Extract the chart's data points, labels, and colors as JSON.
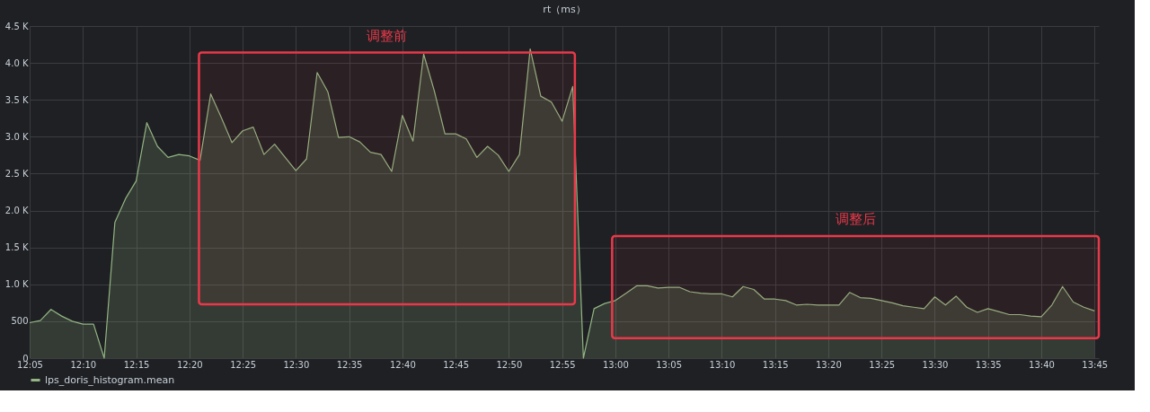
{
  "chart_data": {
    "type": "area",
    "title": "rt（ms）",
    "x": [
      12.0833,
      12.1,
      12.1167,
      12.1333,
      12.15,
      12.1667,
      12.1833,
      12.2,
      12.2167,
      12.2333,
      12.25,
      12.2667,
      12.2833,
      12.3,
      12.3167,
      12.3333,
      12.35,
      12.3667,
      12.3833,
      12.4,
      12.4167,
      12.4333,
      12.45,
      12.4667,
      12.4833,
      12.5,
      12.5167,
      12.5333,
      12.55,
      12.5667,
      12.5833,
      12.6,
      12.6167,
      12.6333,
      12.65,
      12.6667,
      12.6833,
      12.7,
      12.7167,
      12.7333,
      12.75,
      12.7667,
      12.7833,
      12.8,
      12.8167,
      12.8333,
      12.85,
      12.8667,
      12.8833,
      12.9,
      12.9167,
      12.9333,
      12.95,
      12.9667,
      12.9833,
      13,
      13.0167,
      13.0333,
      13.05,
      13.0667,
      13.0833,
      13.1,
      13.1167,
      13.1333,
      13.15,
      13.1667,
      13.1833,
      13.2,
      13.2167,
      13.2333,
      13.25,
      13.2667,
      13.2833,
      13.3,
      13.3167,
      13.3333,
      13.35,
      13.3667,
      13.3833,
      13.4,
      13.4167,
      13.4333,
      13.45,
      13.4667,
      13.4833,
      13.5,
      13.5167,
      13.5333,
      13.55,
      13.5667,
      13.5833,
      13.6,
      13.6167,
      13.6333,
      13.65,
      13.6667,
      13.6833,
      13.7,
      13.7167,
      13.7333,
      13.75
    ],
    "series": [
      {
        "name": "lps_doris_histogram.mean",
        "color": "#93b583",
        "values": [
          480,
          510,
          660,
          570,
          500,
          460,
          460,
          0,
          1840,
          2160,
          2400,
          3190,
          2870,
          2720,
          2760,
          2740,
          2680,
          3580,
          3260,
          2920,
          3080,
          3130,
          2760,
          2900,
          2720,
          2540,
          2700,
          3870,
          3610,
          2990,
          3000,
          2930,
          2790,
          2760,
          2530,
          3290,
          2940,
          4120,
          3620,
          3040,
          3040,
          2970,
          2720,
          2870,
          2750,
          2530,
          2760,
          4190,
          3550,
          3470,
          3210,
          3680,
          0,
          670,
          740,
          780,
          880,
          980,
          980,
          950,
          960,
          960,
          900,
          880,
          870,
          870,
          830,
          970,
          930,
          800,
          800,
          780,
          720,
          730,
          720,
          720,
          720,
          890,
          820,
          810,
          780,
          750,
          710,
          690,
          670,
          830,
          720,
          840,
          690,
          620,
          670,
          630,
          590,
          590,
          570,
          560,
          720,
          970,
          760,
          690,
          640
        ]
      }
    ],
    "xlim": [
      12.0833,
      13.7567
    ],
    "xticks": [
      {
        "value": 12.0833,
        "label": "12:05"
      },
      {
        "value": 12.1667,
        "label": "12:10"
      },
      {
        "value": 12.25,
        "label": "12:15"
      },
      {
        "value": 12.3333,
        "label": "12:20"
      },
      {
        "value": 12.4167,
        "label": "12:25"
      },
      {
        "value": 12.5,
        "label": "12:30"
      },
      {
        "value": 12.5833,
        "label": "12:35"
      },
      {
        "value": 12.6667,
        "label": "12:40"
      },
      {
        "value": 12.75,
        "label": "12:45"
      },
      {
        "value": 12.8333,
        "label": "12:50"
      },
      {
        "value": 12.9167,
        "label": "12:55"
      },
      {
        "value": 13,
        "label": "13:00"
      },
      {
        "value": 13.0833,
        "label": "13:05"
      },
      {
        "value": 13.1667,
        "label": "13:10"
      },
      {
        "value": 13.25,
        "label": "13:15"
      },
      {
        "value": 13.3333,
        "label": "13:20"
      },
      {
        "value": 13.4167,
        "label": "13:25"
      },
      {
        "value": 13.5,
        "label": "13:30"
      },
      {
        "value": 13.5833,
        "label": "13:35"
      },
      {
        "value": 13.6667,
        "label": "13:40"
      },
      {
        "value": 13.75,
        "label": "13:45"
      }
    ],
    "ylim": [
      0,
      4500
    ],
    "yticks": [
      0,
      500,
      {
        "value": 1000,
        "label": "1.0 K"
      },
      {
        "value": 1500,
        "label": "1.5 K"
      },
      {
        "value": 2000,
        "label": "2.0 K"
      },
      {
        "value": 2500,
        "label": "2.5 K"
      },
      {
        "value": 3000,
        "label": "3.0 K"
      },
      {
        "value": 3500,
        "label": "3.5 K"
      },
      {
        "value": 4000,
        "label": "4.0 K"
      },
      {
        "value": 4500,
        "label": "4.5 K"
      }
    ],
    "bands": [
      {
        "axis": "x",
        "from": 12.3483,
        "to": 12.9367,
        "label": "调整前",
        "color": "#e8394a"
      },
      {
        "axis": "x",
        "from": 12.995,
        "to": 13.7567,
        "label": "调整后",
        "color": "#e8394a"
      }
    ],
    "grid": true,
    "legend": "bottom"
  }
}
